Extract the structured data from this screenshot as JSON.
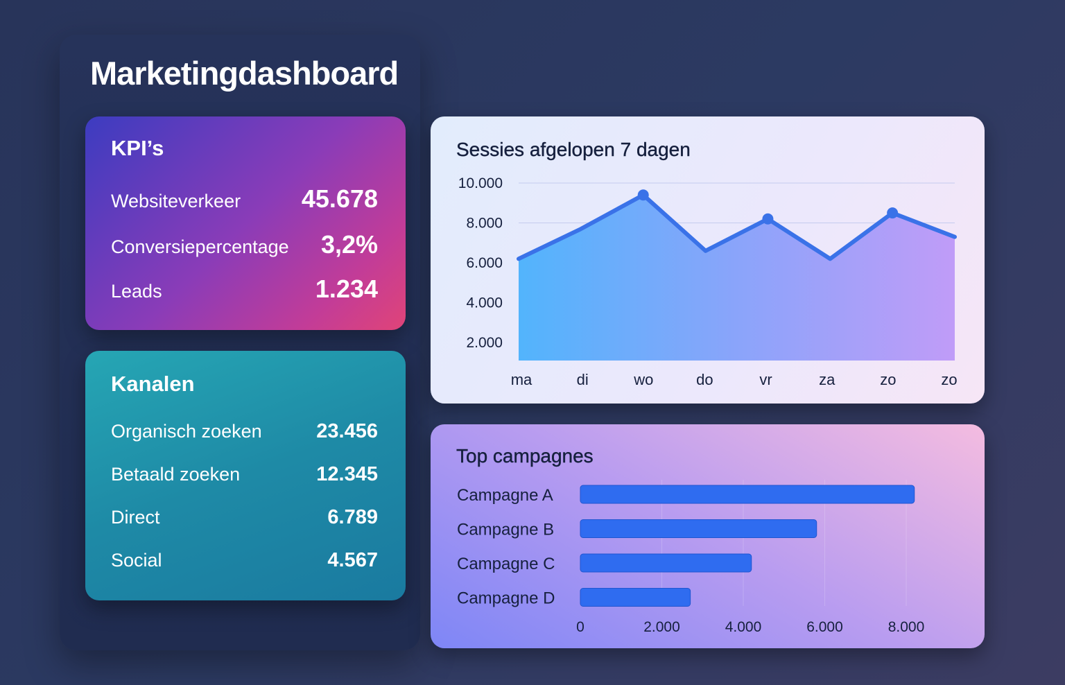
{
  "title": "Marketingdashboard",
  "kpis": {
    "title": "KPI’s",
    "items": [
      {
        "label": "Websiteverkeer",
        "value": "45.678"
      },
      {
        "label": "Conversiepercentage",
        "value": "3,2%"
      },
      {
        "label": "Leads",
        "value": "1.234"
      }
    ]
  },
  "channels": {
    "title": "Kanalen",
    "items": [
      {
        "label": "Organisch zoeken",
        "value": "23.456"
      },
      {
        "label": "Betaald zoeken",
        "value": "12.345"
      },
      {
        "label": "Direct",
        "value": "6.789"
      },
      {
        "label": "Social",
        "value": "4.567"
      }
    ]
  },
  "chart_data": [
    {
      "type": "area",
      "title": "Sessies afgelopen 7 dagen",
      "x_labels": [
        "ma",
        "di",
        "wo",
        "do",
        "vr",
        "za",
        "zo",
        "zo"
      ],
      "y_ticks": [
        "10.000",
        "8.000",
        "6.000",
        "4.000",
        "2.000"
      ],
      "ylim": [
        1100,
        10000
      ],
      "values": [
        6200,
        7700,
        9400,
        6600,
        8200,
        6200,
        8500,
        7300
      ],
      "markers": [
        2,
        4,
        6
      ],
      "grid": true,
      "line_color": "#3a72e8"
    },
    {
      "type": "bar",
      "orientation": "horizontal",
      "title": "Top campagnes",
      "categories": [
        "Campagne A",
        "Campagne B",
        "Campagne C",
        "Campagne D"
      ],
      "values": [
        8200,
        5800,
        4200,
        2700
      ],
      "x_ticks": [
        "0",
        "2.000",
        "4.000",
        "6.000",
        "8.000"
      ],
      "xlim": [
        0,
        8000
      ],
      "bar_color": "#2f6cf0"
    }
  ]
}
